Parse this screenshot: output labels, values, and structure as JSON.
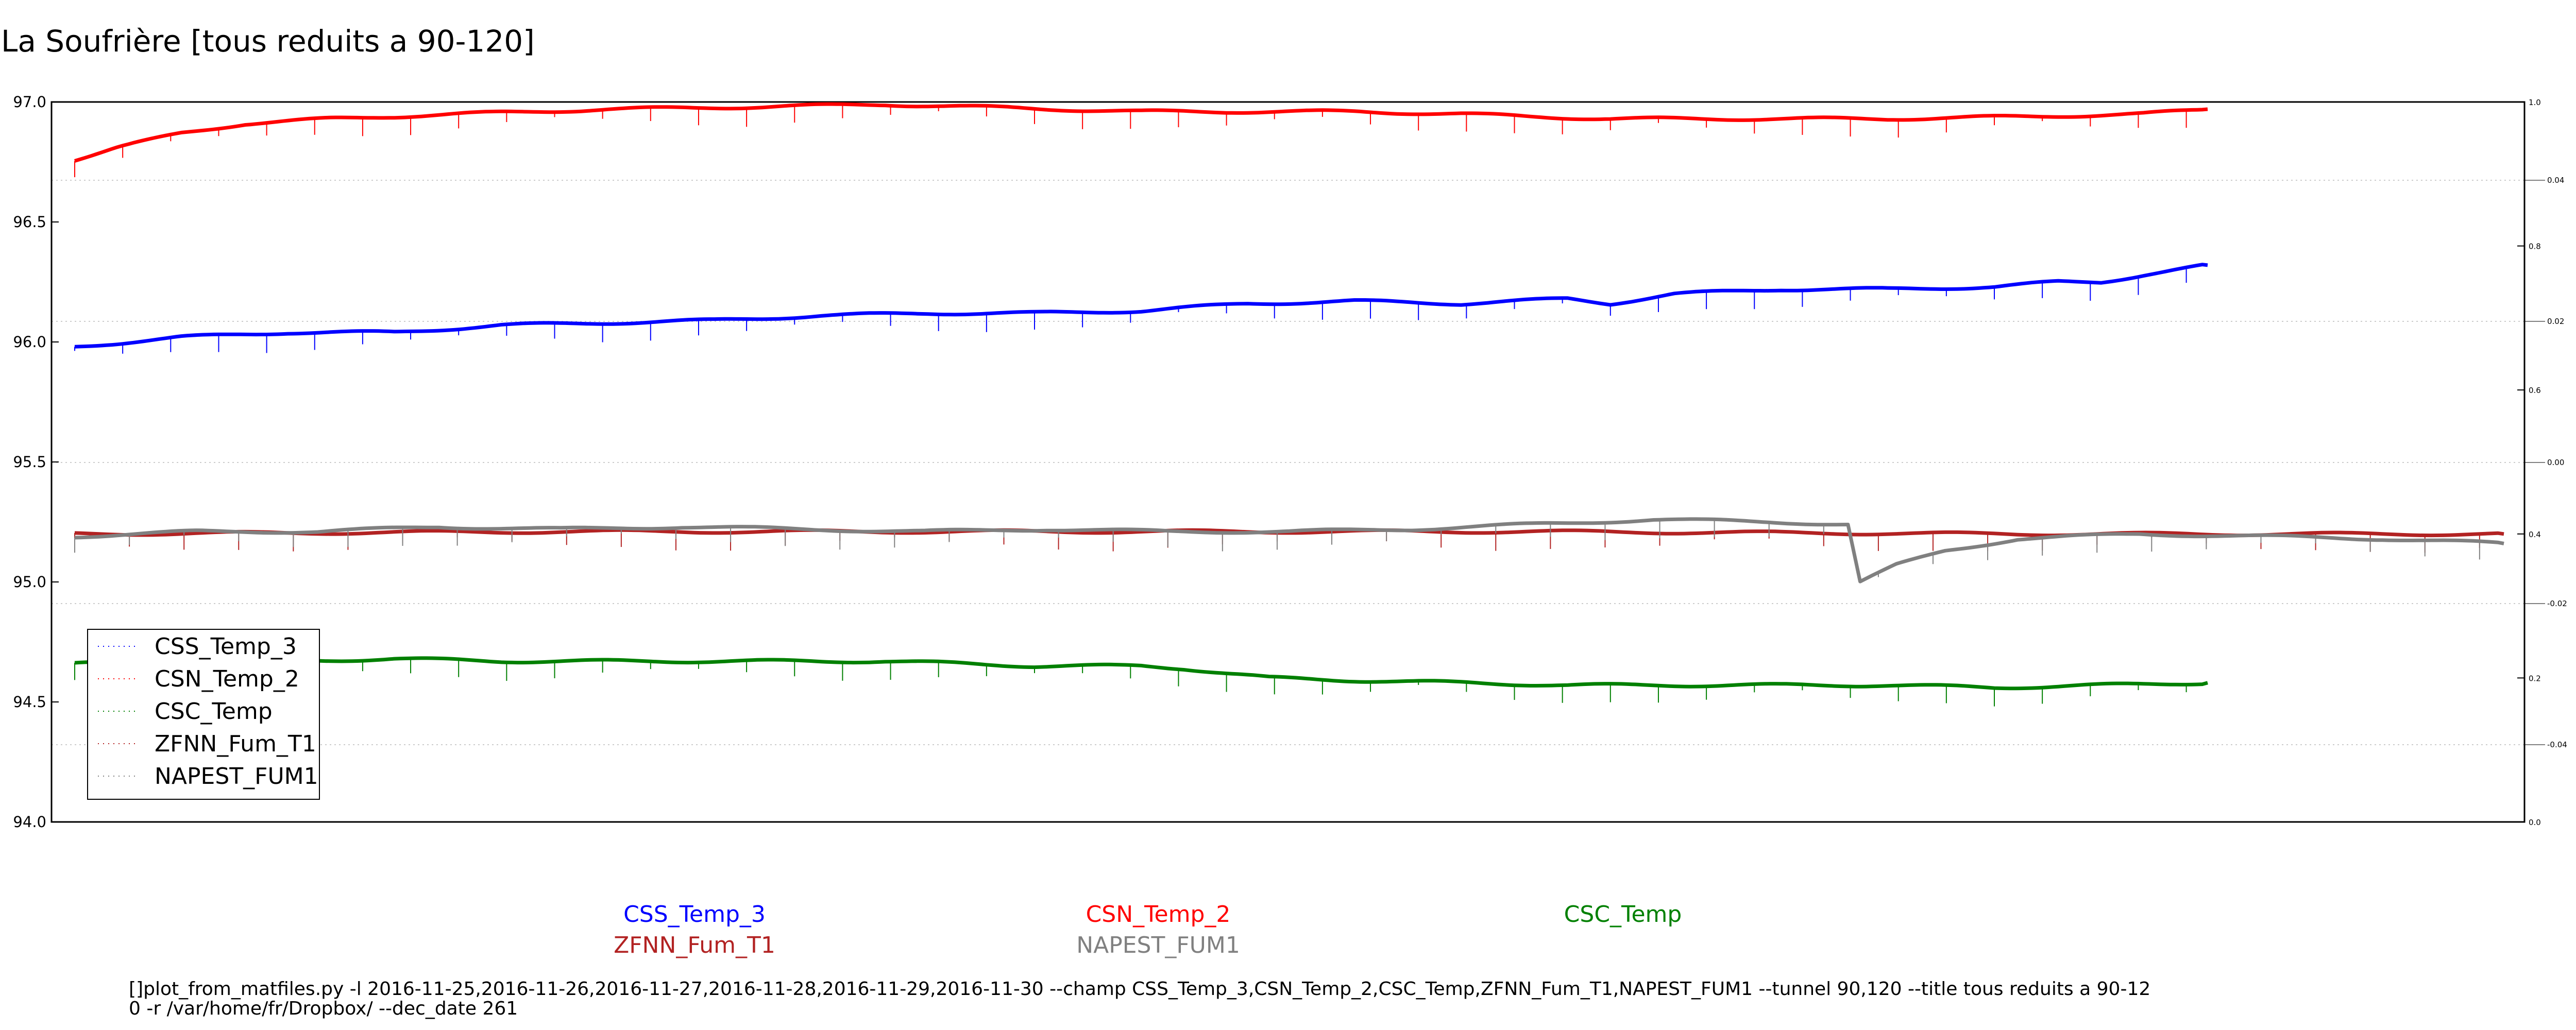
{
  "title": "La Soufrière [tous reduits a 90-120]",
  "chart_data": {
    "type": "line",
    "ylim": [
      94.0,
      97.0
    ],
    "left_ticks": [
      "97.0",
      "96.5",
      "96.0",
      "95.5",
      "95.0",
      "94.5",
      "94.0"
    ],
    "right_ticks_a": [
      "1.0",
      "0.8",
      "0.6",
      "0.4",
      "0.2",
      "0.0"
    ],
    "right_ticks_b": [
      "0.04",
      "0.02",
      "0.00",
      "-0.02",
      "-0.04"
    ],
    "grid_dashed_right_b": true,
    "legend_position": "lower-left",
    "series": [
      {
        "name": "CSS_Temp_3",
        "color": "#0000ff",
        "points": [
          [
            0,
            95.98
          ],
          [
            0.05,
            96.02
          ],
          [
            0.1,
            96.04
          ],
          [
            0.15,
            96.04
          ],
          [
            0.2,
            96.07
          ],
          [
            0.25,
            96.08
          ],
          [
            0.3,
            96.09
          ],
          [
            0.35,
            96.11
          ],
          [
            0.4,
            96.12
          ],
          [
            0.45,
            96.12
          ],
          [
            0.5,
            96.13
          ],
          [
            0.55,
            96.16
          ],
          [
            0.6,
            96.17
          ],
          [
            0.65,
            96.16
          ],
          [
            0.7,
            96.18
          ],
          [
            0.72,
            96.16
          ],
          [
            0.75,
            96.2
          ],
          [
            0.8,
            96.22
          ],
          [
            0.85,
            96.22
          ],
          [
            0.9,
            96.23
          ],
          [
            0.93,
            96.25
          ],
          [
            0.95,
            96.25
          ],
          [
            0.97,
            96.28
          ],
          [
            1.0,
            96.32
          ]
        ]
      },
      {
        "name": "CSN_Temp_2",
        "color": "#ff0000",
        "points": [
          [
            0,
            96.76
          ],
          [
            0.02,
            96.81
          ],
          [
            0.05,
            96.87
          ],
          [
            0.08,
            96.91
          ],
          [
            0.12,
            96.93
          ],
          [
            0.18,
            96.95
          ],
          [
            0.25,
            96.97
          ],
          [
            0.32,
            96.98
          ],
          [
            0.38,
            96.99
          ],
          [
            0.42,
            96.98
          ],
          [
            0.5,
            96.96
          ],
          [
            0.55,
            96.96
          ],
          [
            0.6,
            96.96
          ],
          [
            0.65,
            96.95
          ],
          [
            0.68,
            96.94
          ],
          [
            0.72,
            96.93
          ],
          [
            0.78,
            96.93
          ],
          [
            0.85,
            96.93
          ],
          [
            0.92,
            96.94
          ],
          [
            0.97,
            96.95
          ],
          [
            1.0,
            96.97
          ]
        ]
      },
      {
        "name": "CSC_Temp",
        "color": "#008000",
        "points": [
          [
            0,
            94.66
          ],
          [
            0.1,
            94.67
          ],
          [
            0.15,
            94.68
          ],
          [
            0.2,
            94.67
          ],
          [
            0.3,
            94.67
          ],
          [
            0.38,
            94.67
          ],
          [
            0.45,
            94.65
          ],
          [
            0.5,
            94.65
          ],
          [
            0.52,
            94.64
          ],
          [
            0.54,
            94.62
          ],
          [
            0.56,
            94.6
          ],
          [
            0.6,
            94.59
          ],
          [
            0.65,
            94.58
          ],
          [
            0.7,
            94.57
          ],
          [
            0.8,
            94.57
          ],
          [
            0.85,
            94.57
          ],
          [
            0.9,
            94.56
          ],
          [
            0.95,
            94.57
          ],
          [
            1.0,
            94.58
          ]
        ]
      },
      {
        "name": "ZFNN_Fum_T1",
        "color": "#b22222",
        "points": [
          [
            0,
            95.2
          ],
          [
            0.2,
            95.21
          ],
          [
            0.4,
            95.21
          ],
          [
            0.6,
            95.21
          ],
          [
            0.8,
            95.2
          ],
          [
            1.0,
            95.2
          ]
        ]
      },
      {
        "name": "NAPEST_FUM1",
        "color": "#808080",
        "points": [
          [
            0,
            95.19
          ],
          [
            0.05,
            95.21
          ],
          [
            0.1,
            95.21
          ],
          [
            0.15,
            95.23
          ],
          [
            0.2,
            95.22
          ],
          [
            0.25,
            95.23
          ],
          [
            0.3,
            95.22
          ],
          [
            0.35,
            95.21
          ],
          [
            0.4,
            95.22
          ],
          [
            0.45,
            95.21
          ],
          [
            0.5,
            95.21
          ],
          [
            0.55,
            95.22
          ],
          [
            0.6,
            95.24
          ],
          [
            0.65,
            95.26
          ],
          [
            0.7,
            95.25
          ],
          [
            0.73,
            95.24
          ],
          [
            0.735,
            95.0
          ],
          [
            0.75,
            95.07
          ],
          [
            0.77,
            95.13
          ],
          [
            0.8,
            95.18
          ],
          [
            0.85,
            95.2
          ],
          [
            0.9,
            95.19
          ],
          [
            0.95,
            95.18
          ],
          [
            1.0,
            95.16
          ]
        ]
      }
    ]
  },
  "bottom_labels": {
    "row1": [
      "CSS_Temp_3",
      "CSN_Temp_2",
      "CSC_Temp"
    ],
    "row2": [
      "ZFNN_Fum_T1",
      "NAPEST_FUM1"
    ]
  },
  "command_line_1": "[]plot_from_matfiles.py -l 2016-11-25,2016-11-26,2016-11-27,2016-11-28,2016-11-29,2016-11-30 --champ CSS_Temp_3,CSN_Temp_2,CSC_Temp,ZFNN_Fum_T1,NAPEST_FUM1 --tunnel 90,120 --title tous reduits a 90-12",
  "command_line_2": "0 -r /var/home/fr/Dropbox/ --dec_date 261"
}
